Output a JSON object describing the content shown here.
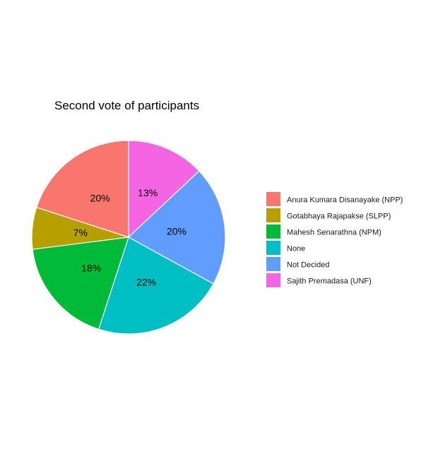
{
  "chart_data": {
    "type": "pie",
    "title": "Second vote of participants",
    "legend_position": "right",
    "slices": [
      {
        "label": "Anura Kumara Disanayake (NPP)",
        "value": 20,
        "display": "20%",
        "color": "#F8766D"
      },
      {
        "label": "Gotabhaya Rajapakse (SLPP)",
        "value": 7,
        "display": "7%",
        "color": "#B79F00"
      },
      {
        "label": "Mahesh Senarathna (NPM)",
        "value": 18,
        "display": "18%",
        "color": "#00BA38"
      },
      {
        "label": "None",
        "value": 22,
        "display": "22%",
        "color": "#00BFC4"
      },
      {
        "label": "Not Decided",
        "value": 20,
        "display": "20%",
        "color": "#619CFF"
      },
      {
        "label": "Sajith Premadasa (UNF)",
        "value": 13,
        "display": "13%",
        "color": "#F564E3"
      }
    ],
    "draw_order": [
      "Sajith Premadasa (UNF)",
      "Not Decided",
      "None",
      "Mahesh Senarathna (NPM)",
      "Gotabhaya Rajapakse (SLPP)",
      "Anura Kumara Disanayake (NPP)"
    ]
  }
}
